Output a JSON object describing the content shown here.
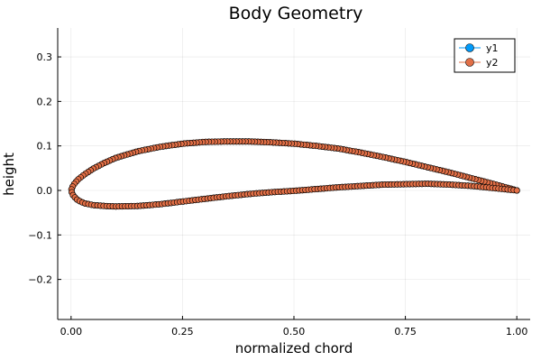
{
  "chart_data": {
    "type": "scatter",
    "title": "Body Geometry",
    "xlabel": "normalized chord",
    "ylabel": "height",
    "xlim": [
      -0.03,
      1.03
    ],
    "ylim": [
      -0.29,
      0.365
    ],
    "xticks": [
      0.0,
      0.25,
      0.5,
      0.75,
      1.0
    ],
    "xtick_labels": [
      "0.00",
      "0.25",
      "0.50",
      "0.75",
      "1.00"
    ],
    "yticks": [
      -0.2,
      -0.1,
      0.0,
      0.1,
      0.2,
      0.3
    ],
    "ytick_labels": [
      "−0.2",
      "−0.1",
      "0.0",
      "0.1",
      "0.2",
      "0.3"
    ],
    "grid": true,
    "legend_position": "top-right",
    "series": [
      {
        "name": "y1",
        "color": "#009AFA",
        "mode": "lines+markers",
        "x": [
          1.0,
          0.95,
          0.9,
          0.85,
          0.8,
          0.75,
          0.7,
          0.65,
          0.6,
          0.55,
          0.5,
          0.45,
          0.4,
          0.35,
          0.3,
          0.25,
          0.2,
          0.15,
          0.1,
          0.075,
          0.05,
          0.03,
          0.015,
          0.005,
          0.0,
          0.005,
          0.015,
          0.03,
          0.05,
          0.075,
          0.1,
          0.15,
          0.2,
          0.25,
          0.3,
          0.35,
          0.4,
          0.45,
          0.5,
          0.55,
          0.6,
          0.65,
          0.7,
          0.75,
          0.8,
          0.85,
          0.9,
          0.95,
          1.0
        ],
        "y": [
          0.0,
          0.014,
          0.027,
          0.04,
          0.052,
          0.064,
          0.075,
          0.085,
          0.094,
          0.1,
          0.105,
          0.108,
          0.11,
          0.11,
          0.109,
          0.105,
          0.098,
          0.088,
          0.073,
          0.062,
          0.049,
          0.036,
          0.024,
          0.012,
          0.0,
          -0.012,
          -0.022,
          -0.029,
          -0.033,
          -0.035,
          -0.036,
          -0.035,
          -0.031,
          -0.025,
          -0.019,
          -0.013,
          -0.008,
          -0.004,
          -0.001,
          0.003,
          0.007,
          0.01,
          0.013,
          0.014,
          0.015,
          0.013,
          0.01,
          0.005,
          0.0
        ]
      },
      {
        "name": "y2",
        "color": "#E26F46",
        "mode": "markers",
        "x": [
          1.0,
          0.95,
          0.9,
          0.85,
          0.8,
          0.75,
          0.7,
          0.65,
          0.6,
          0.55,
          0.5,
          0.45,
          0.4,
          0.35,
          0.3,
          0.25,
          0.2,
          0.15,
          0.1,
          0.075,
          0.05,
          0.03,
          0.015,
          0.005,
          0.0,
          0.005,
          0.015,
          0.03,
          0.05,
          0.075,
          0.1,
          0.15,
          0.2,
          0.25,
          0.3,
          0.35,
          0.4,
          0.45,
          0.5,
          0.55,
          0.6,
          0.65,
          0.7,
          0.75,
          0.8,
          0.85,
          0.9,
          0.95,
          1.0
        ],
        "y": [
          0.0,
          0.014,
          0.027,
          0.04,
          0.052,
          0.064,
          0.075,
          0.085,
          0.094,
          0.1,
          0.105,
          0.108,
          0.11,
          0.11,
          0.109,
          0.105,
          0.098,
          0.088,
          0.073,
          0.062,
          0.049,
          0.036,
          0.024,
          0.012,
          0.0,
          -0.012,
          -0.022,
          -0.029,
          -0.033,
          -0.035,
          -0.036,
          -0.035,
          -0.031,
          -0.025,
          -0.019,
          -0.013,
          -0.008,
          -0.004,
          -0.001,
          0.003,
          0.007,
          0.01,
          0.013,
          0.014,
          0.015,
          0.013,
          0.01,
          0.005,
          0.0
        ]
      }
    ]
  }
}
